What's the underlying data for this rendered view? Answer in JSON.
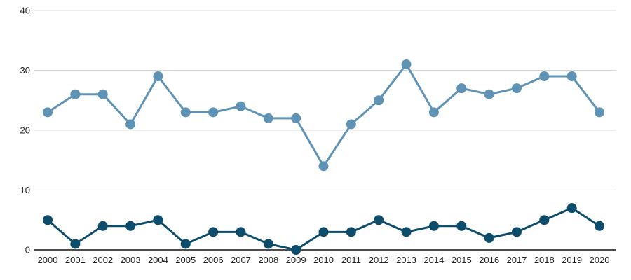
{
  "chart_data": {
    "type": "line",
    "title": "",
    "xlabel": "",
    "ylabel": "",
    "categories": [
      "2000",
      "2001",
      "2002",
      "2003",
      "2004",
      "2005",
      "2006",
      "2007",
      "2008",
      "2009",
      "2010",
      "2011",
      "2012",
      "2013",
      "2014",
      "2015",
      "2016",
      "2017",
      "2018",
      "2019",
      "2020"
    ],
    "series": [
      {
        "name": "upper-light-blue-series",
        "color": "#5e93b6",
        "values": [
          23,
          26,
          26,
          21,
          29,
          23,
          23,
          24,
          22,
          22,
          14,
          21,
          25,
          31,
          23,
          27,
          26,
          27,
          29,
          29,
          23
        ]
      },
      {
        "name": "lower-dark-teal-series",
        "color": "#0d4c6a",
        "values": [
          5,
          1,
          4,
          4,
          5,
          1,
          3,
          3,
          1,
          0,
          3,
          3,
          5,
          3,
          4,
          4,
          2,
          3,
          5,
          7,
          4
        ]
      }
    ],
    "ylim": [
      0,
      40
    ],
    "yticks": [
      0,
      10,
      20,
      30,
      40
    ],
    "grid": true,
    "legend": "none",
    "colors": {
      "gridline": "#d9d9d9",
      "axis_line": "#4d4d4d",
      "tick_label": "#1f1f1f",
      "background": "#ffffff"
    }
  }
}
